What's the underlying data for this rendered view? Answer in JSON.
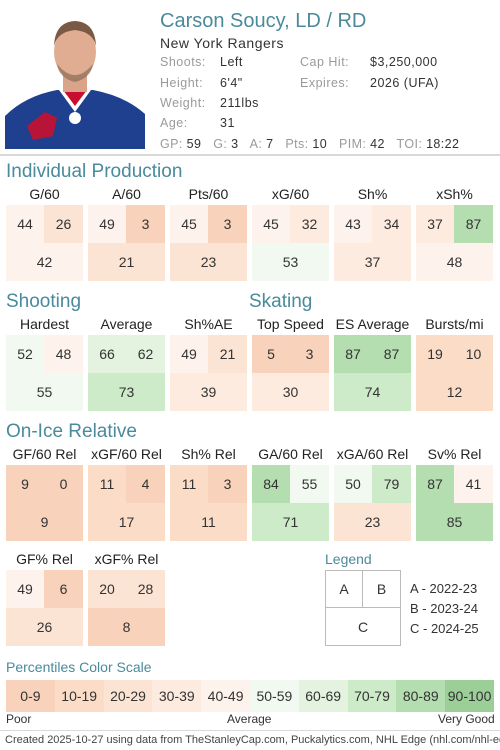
{
  "player": {
    "name": "Carson Soucy, LD / RD",
    "team": "New York Rangers",
    "shoots_label": "Shoots:",
    "shoots": "Left",
    "height_label": "Height:",
    "height": "6'4\"",
    "weight_label": "Weight:",
    "weight": "211lbs",
    "age_label": "Age:",
    "age": "31",
    "caphit_label": "Cap Hit:",
    "caphit": "$3,250,000",
    "expires_label": "Expires:",
    "expires": "2026 (UFA)"
  },
  "statline": [
    {
      "label": "GP:",
      "value": "59"
    },
    {
      "label": "G:",
      "value": "3"
    },
    {
      "label": "A:",
      "value": "7"
    },
    {
      "label": "Pts:",
      "value": "10"
    },
    {
      "label": "PIM:",
      "value": "42"
    },
    {
      "label": "TOI:",
      "value": "18:22"
    }
  ],
  "sections": {
    "individual": "Individual Production",
    "shooting": "Shooting",
    "skating": "Skating",
    "onice": "On-Ice Relative"
  },
  "metrics": {
    "g60": {
      "label": "G/60",
      "a": 44,
      "b": 26,
      "c": 42
    },
    "a60": {
      "label": "A/60",
      "a": 49,
      "b": 3,
      "c": 21
    },
    "pts60": {
      "label": "Pts/60",
      "a": 45,
      "b": 3,
      "c": 23
    },
    "xg60": {
      "label": "xG/60",
      "a": 45,
      "b": 32,
      "c": 53
    },
    "sh": {
      "label": "Sh%",
      "a": 43,
      "b": 34,
      "c": 37
    },
    "xsh": {
      "label": "xSh%",
      "a": 37,
      "b": 87,
      "c": 48
    },
    "hardest": {
      "label": "Hardest",
      "a": 52,
      "b": 48,
      "c": 55
    },
    "average": {
      "label": "Average",
      "a": 66,
      "b": 62,
      "c": 73
    },
    "shae": {
      "label": "Sh%AE",
      "a": 49,
      "b": 21,
      "c": 39
    },
    "topspeed": {
      "label": "Top Speed",
      "a": 5,
      "b": 3,
      "c": 30
    },
    "esavg": {
      "label": "ES Average",
      "a": 87,
      "b": 87,
      "c": 74
    },
    "bursts": {
      "label": "Bursts/mi",
      "a": 19,
      "b": 10,
      "c": 12
    },
    "gf60rel": {
      "label": "GF/60 Rel",
      "a": 9,
      "b": 0,
      "c": 9
    },
    "xgf60rel": {
      "label": "xGF/60 Rel",
      "a": 11,
      "b": 4,
      "c": 17
    },
    "shrel": {
      "label": "Sh% Rel",
      "a": 11,
      "b": 3,
      "c": 11
    },
    "ga60rel": {
      "label": "GA/60 Rel",
      "a": 84,
      "b": 55,
      "c": 71
    },
    "xga60rel": {
      "label": "xGA/60 Rel",
      "a": 50,
      "b": 79,
      "c": 23
    },
    "svrel": {
      "label": "Sv% Rel",
      "a": 87,
      "b": 41,
      "c": 85
    },
    "gfrel": {
      "label": "GF% Rel",
      "a": 49,
      "b": 6,
      "c": 26
    },
    "xgfrel": {
      "label": "xGF% Rel",
      "a": 20,
      "b": 28,
      "c": 8
    }
  },
  "legend": {
    "title": "Legend",
    "a": "A",
    "b": "B",
    "c": "C",
    "a_text": "A - 2022-23",
    "b_text": "B - 2023-24",
    "c_text": "C - 2024-25"
  },
  "scale": {
    "title": "Percentiles Color Scale",
    "bins": [
      "0-9",
      "10-19",
      "20-29",
      "30-39",
      "40-49",
      "50-59",
      "60-69",
      "70-79",
      "80-89",
      "90-100"
    ],
    "colors": [
      "#f8d2ba",
      "#fbdcc7",
      "#fce4d4",
      "#fdebe0",
      "#fef3ec",
      "#f2f9f0",
      "#e3f3df",
      "#cdeac9",
      "#b4ddb0",
      "#9ccf98"
    ],
    "poor": "Poor",
    "average": "Average",
    "very_good": "Very Good"
  },
  "footer": "Created 2025-10-27 using data from TheStanleyCap.com, Puckalytics.com, NHL Edge (nhl.com/nhl-edge)."
}
